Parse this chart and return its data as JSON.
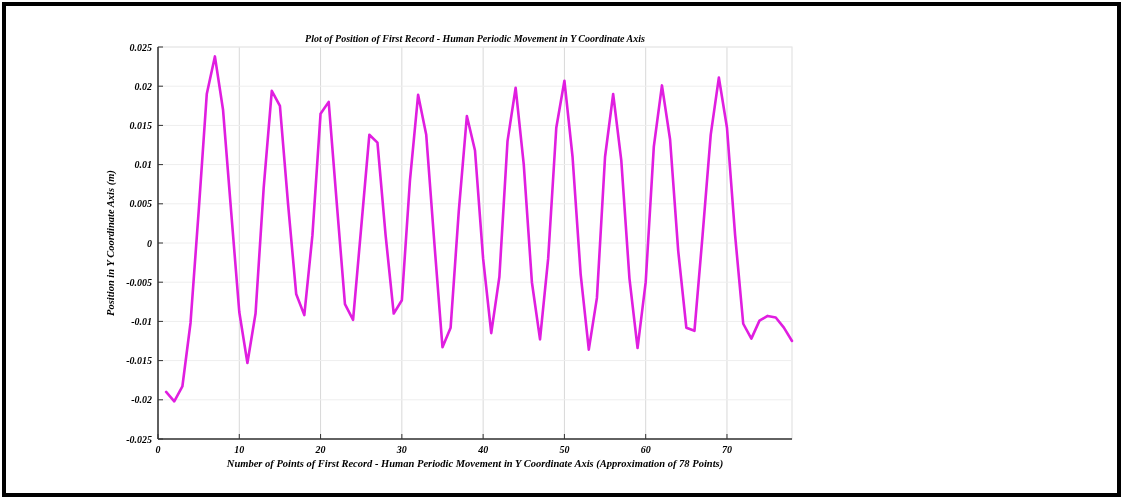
{
  "chart_data": {
    "type": "line",
    "title": "Plot of Position of First Record - Human Periodic Movement in Y Coordinate Axis",
    "xlabel": "Number of Points of First Record - Human Periodic Movement in Y Coordinate Axis (Approximation of 78 Points)",
    "ylabel": "Position in Y Coordinate Axis (m)",
    "x": [
      1,
      2,
      3,
      4,
      5,
      6,
      7,
      8,
      9,
      10,
      11,
      12,
      13,
      14,
      15,
      16,
      17,
      18,
      19,
      20,
      21,
      22,
      23,
      24,
      25,
      26,
      27,
      28,
      29,
      30,
      31,
      32,
      33,
      34,
      35,
      36,
      37,
      38,
      39,
      40,
      41,
      42,
      43,
      44,
      45,
      46,
      47,
      48,
      49,
      50,
      51,
      52,
      53,
      54,
      55,
      56,
      57,
      58,
      59,
      60,
      61,
      62,
      63,
      64,
      65,
      66,
      67,
      68,
      69,
      70,
      71,
      72,
      73,
      74,
      75,
      76,
      77,
      78
    ],
    "series": [
      {
        "color": "#e01ee0",
        "values": [
          -0.019,
          -0.0202,
          -0.0183,
          -0.0102,
          0.004,
          0.019,
          0.0238,
          0.017,
          0.004,
          -0.0088,
          -0.0153,
          -0.009,
          0.007,
          0.0194,
          0.0175,
          0.005,
          -0.0065,
          -0.0092,
          0.001,
          0.0165,
          0.018,
          0.005,
          -0.0078,
          -0.0098,
          0.002,
          0.0138,
          0.0128,
          0.001,
          -0.009,
          -0.0073,
          0.008,
          0.0189,
          0.0138,
          0.0,
          -0.0133,
          -0.0108,
          0.004,
          0.0162,
          0.0118,
          -0.002,
          -0.0115,
          -0.0043,
          0.013,
          0.0198,
          0.01,
          -0.005,
          -0.0123,
          -0.002,
          0.0147,
          0.0207,
          0.011,
          -0.004,
          -0.0136,
          -0.007,
          0.011,
          0.019,
          0.0105,
          -0.0045,
          -0.0134,
          -0.005,
          0.0123,
          0.0201,
          0.0132,
          -0.001,
          -0.0108,
          -0.0112,
          0.001,
          0.0138,
          0.0211,
          0.0147,
          0.001,
          -0.0103,
          -0.0122,
          -0.0099,
          -0.0093,
          -0.0095,
          -0.0108,
          -0.0125
        ]
      }
    ],
    "xlim": [
      0,
      78
    ],
    "xticks": [
      0,
      10,
      20,
      30,
      40,
      50,
      60,
      70
    ],
    "ylim": [
      -0.025,
      0.025
    ],
    "yticks": [
      -0.025,
      -0.02,
      -0.015,
      -0.01,
      -0.005,
      0,
      0.005,
      0.01,
      0.015,
      0.02,
      0.025
    ],
    "grid": true,
    "marker": "none",
    "line_style": "solid"
  }
}
